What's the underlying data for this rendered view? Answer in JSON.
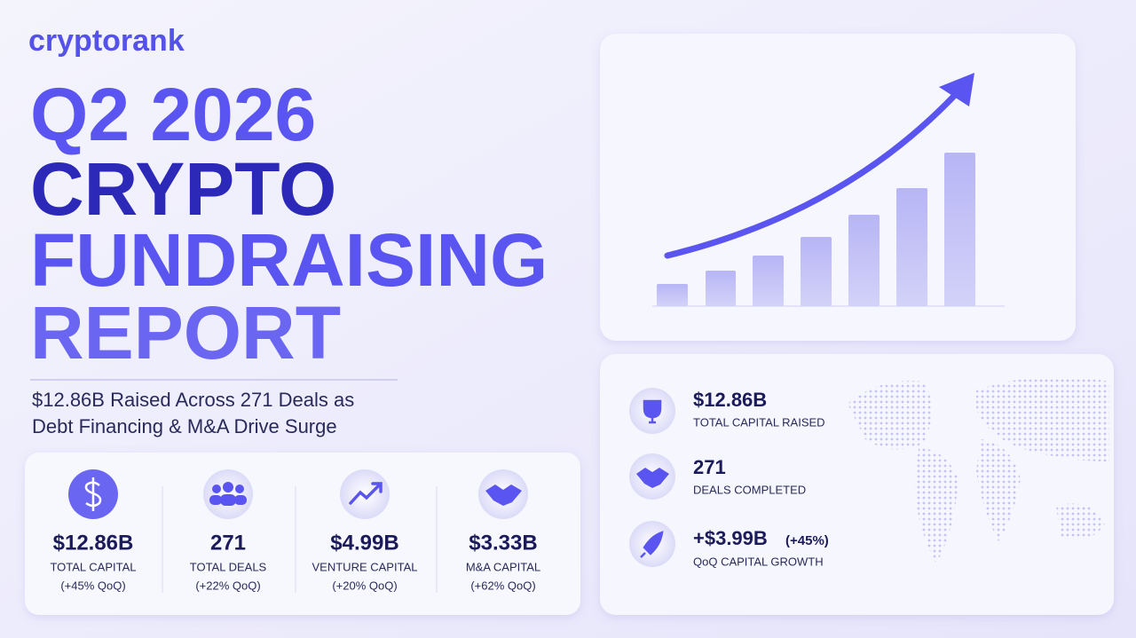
{
  "logo": "cryptorank",
  "title": [
    "Q2 2026",
    "CRYPTO",
    "FUNDRAISING",
    "REPORT"
  ],
  "subtitle": [
    "$12.86B Raised Across 271 Deals as",
    "Debt Financing & M&A Drive Surge"
  ],
  "stats": [
    {
      "value": "$12.86B",
      "label": "TOTAL CAPITAL",
      "change": "(+45% QoQ)"
    },
    {
      "value": "271",
      "label": "TOTAL DEALS",
      "change": "(+22% QoQ)"
    },
    {
      "value": "$4.99B",
      "label": "VENTURE CAPITAL",
      "change": "(+20% QoQ)"
    },
    {
      "value": "$3.33B",
      "label": "M&A CAPITAL",
      "change": "(+62% QoQ)"
    }
  ],
  "highlights": [
    {
      "value": "$12.86B",
      "label": "TOTAL CAPITAL RAISED"
    },
    {
      "value": "271",
      "label": "DEALS COMPLETED"
    },
    {
      "value": "+$3.99B",
      "note": "(+45%)",
      "label": "QoQ CAPITAL GROWTH"
    }
  ]
}
